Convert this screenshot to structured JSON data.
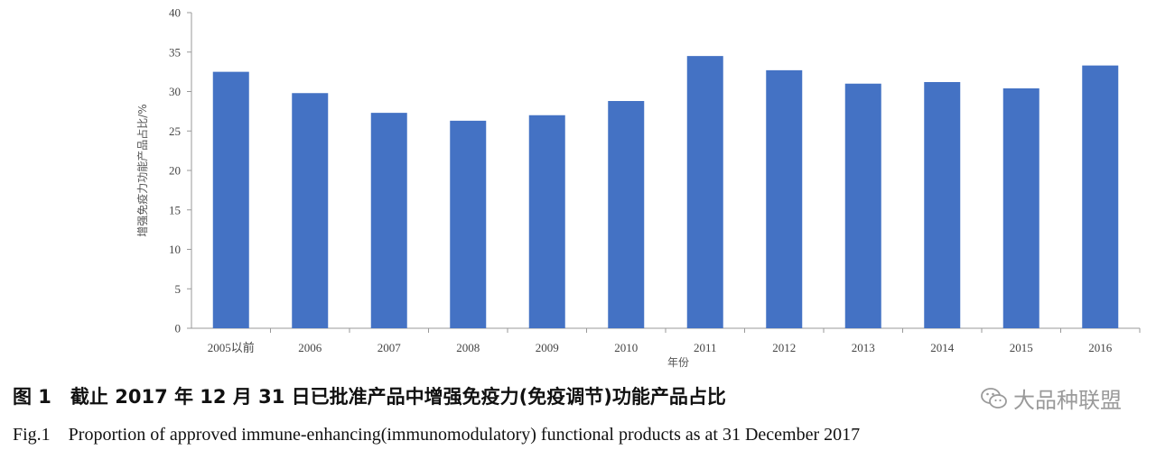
{
  "chart_data": {
    "type": "bar",
    "categories": [
      "2005以前",
      "2006",
      "2007",
      "2008",
      "2009",
      "2010",
      "2011",
      "2012",
      "2013",
      "2014",
      "2015",
      "2016"
    ],
    "values": [
      32.5,
      29.8,
      27.3,
      26.3,
      27.0,
      28.8,
      34.5,
      32.7,
      31.0,
      31.2,
      30.4,
      33.3
    ],
    "xlabel": "年份",
    "ylabel": "增强免疫力功能产品占比/%",
    "ylim": [
      0,
      40
    ],
    "yticks": [
      0,
      5,
      10,
      15,
      20,
      25,
      30,
      35,
      40
    ],
    "grid": false,
    "bar_color": "#4472c4"
  },
  "caption": {
    "zh": "图 1　截止 2017 年 12 月 31 日已批准产品中增强免疫力(免疫调节)功能产品占比",
    "en": "Fig.1　Proportion of approved immune-enhancing(immunomodulatory) functional products as at 31 December 2017"
  },
  "watermark": {
    "text": "大品种联盟",
    "icon": "wechat-icon"
  }
}
